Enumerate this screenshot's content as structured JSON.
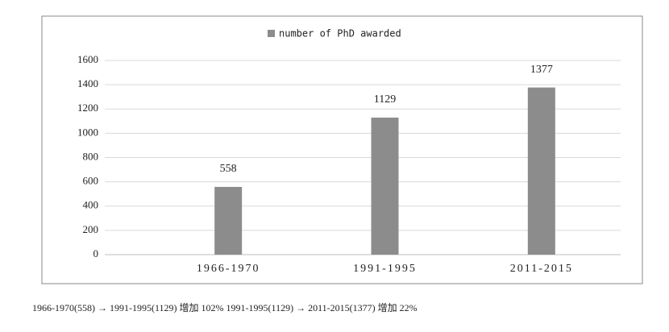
{
  "chart_data": {
    "type": "bar",
    "categories": [
      "1966-1970",
      "1991-1995",
      "2011-2015"
    ],
    "series": [
      {
        "name": "number of PhD awarded",
        "color": "#8c8c8c",
        "values": [
          558,
          1129,
          1377
        ]
      }
    ],
    "ylim": [
      0,
      1600
    ],
    "yticks": [
      0,
      200,
      400,
      600,
      800,
      1000,
      1200,
      1400,
      1600
    ],
    "grid": true,
    "legend": "top"
  },
  "footer_note": "1966-1970(558) → 1991-1995(1129) 增加 102% 1991-1995(1129) → 2011-2015(1377) 增加 22%"
}
